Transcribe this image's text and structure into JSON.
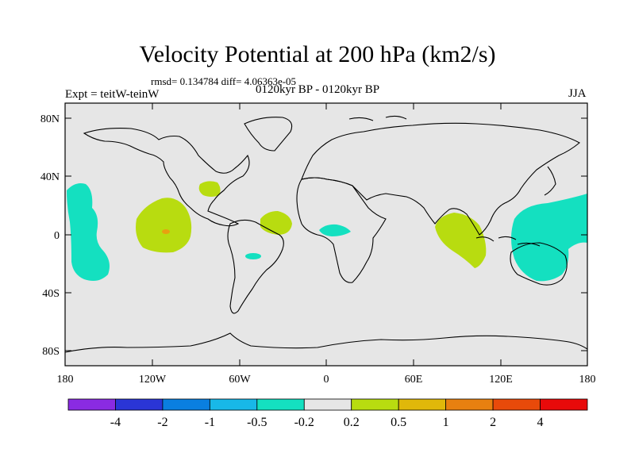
{
  "title": "Velocity Potential at 200 hPa (km2/s)",
  "stats": "rmsd= 0.134784 diff= 4.06363e-05",
  "left_label": "Expt = teitW-teinW",
  "center_label": "0120kyr BP - 0120kyr BP",
  "right_label": "JJA",
  "axes": {
    "y_ticks": [
      "80N",
      "40N",
      "0",
      "40S",
      "80S"
    ],
    "x_ticks": [
      "180",
      "120W",
      "60W",
      "0",
      "60E",
      "120E",
      "180"
    ]
  },
  "colorbar": {
    "colors": [
      "#8a2be2",
      "#2a35d6",
      "#0a7fe0",
      "#18b8e8",
      "#14e0c0",
      "#e6e6e6",
      "#b8dc10",
      "#e0b80a",
      "#e88010",
      "#e84a0a",
      "#e80a0a"
    ],
    "labels": [
      "-4",
      "-2",
      "-1",
      "-0.5",
      "-0.2",
      "0.2",
      "0.5",
      "1",
      "2",
      "4"
    ]
  },
  "palette": {
    "background": "#e6e6e6",
    "negative": "#14e0c0",
    "positive": "#b8dc10",
    "peak": "#e8a010"
  }
}
